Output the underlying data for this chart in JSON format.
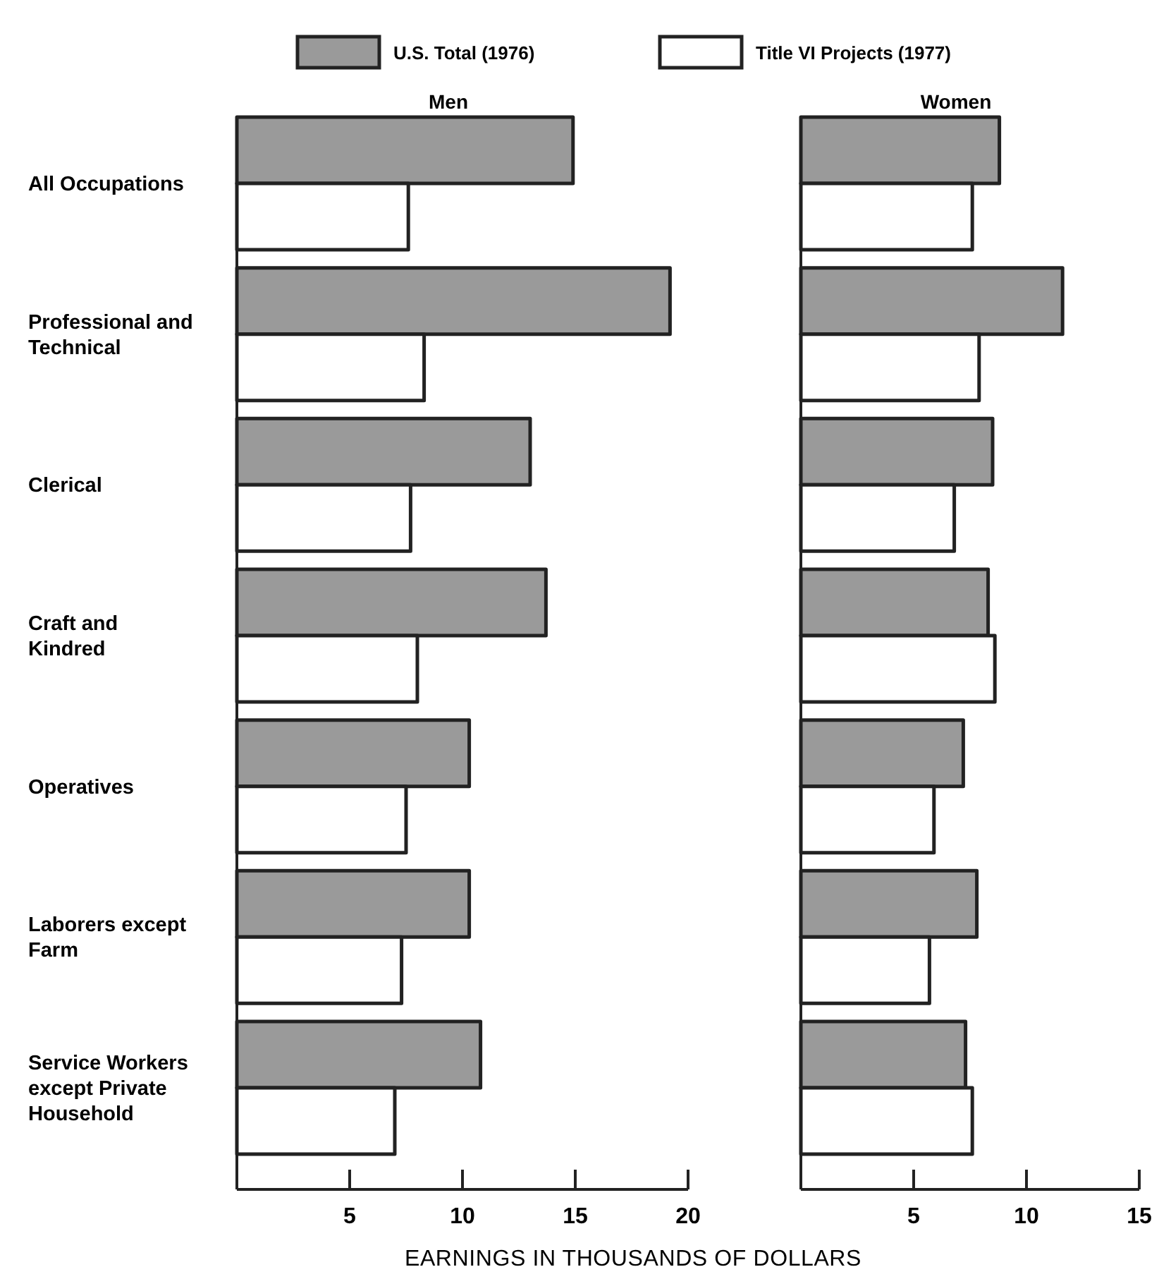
{
  "chart_data": [
    {
      "type": "bar",
      "orientation": "horizontal",
      "title": "Men",
      "xlabel": "EARNINGS IN THOUSANDS OF DOLLARS",
      "categories": [
        "All Occupations",
        "Professional and Technical",
        "Clerical",
        "Craft and Kindred",
        "Operatives",
        "Laborers except Farm",
        "Service Workers except Private Household"
      ],
      "series": [
        {
          "name": "U.S. Total (1976)",
          "color": "#9a9a9a",
          "values": [
            14.9,
            19.2,
            13.0,
            13.7,
            10.3,
            10.3,
            10.8
          ]
        },
        {
          "name": "Title VI Projects (1977)",
          "color": "#ffffff",
          "values": [
            7.6,
            8.3,
            7.7,
            8.0,
            7.5,
            7.3,
            7.0
          ]
        }
      ],
      "xlim": [
        0,
        20
      ],
      "xticks": [
        5,
        10,
        15,
        20
      ],
      "legend": "top",
      "grid": false
    },
    {
      "type": "bar",
      "orientation": "horizontal",
      "title": "Women",
      "series": [
        {
          "color": "#9a9a9a",
          "values": [
            8.8,
            11.6,
            8.5,
            8.3,
            7.2,
            7.8,
            7.3
          ]
        },
        {
          "color": "#ffffff",
          "values": [
            7.6,
            7.9,
            6.8,
            8.6,
            5.9,
            5.7,
            7.6
          ]
        }
      ],
      "xlim": [
        0,
        15
      ],
      "xticks": [
        5,
        10,
        15
      ],
      "tick_labels": "x",
      "grid": false
    }
  ]
}
